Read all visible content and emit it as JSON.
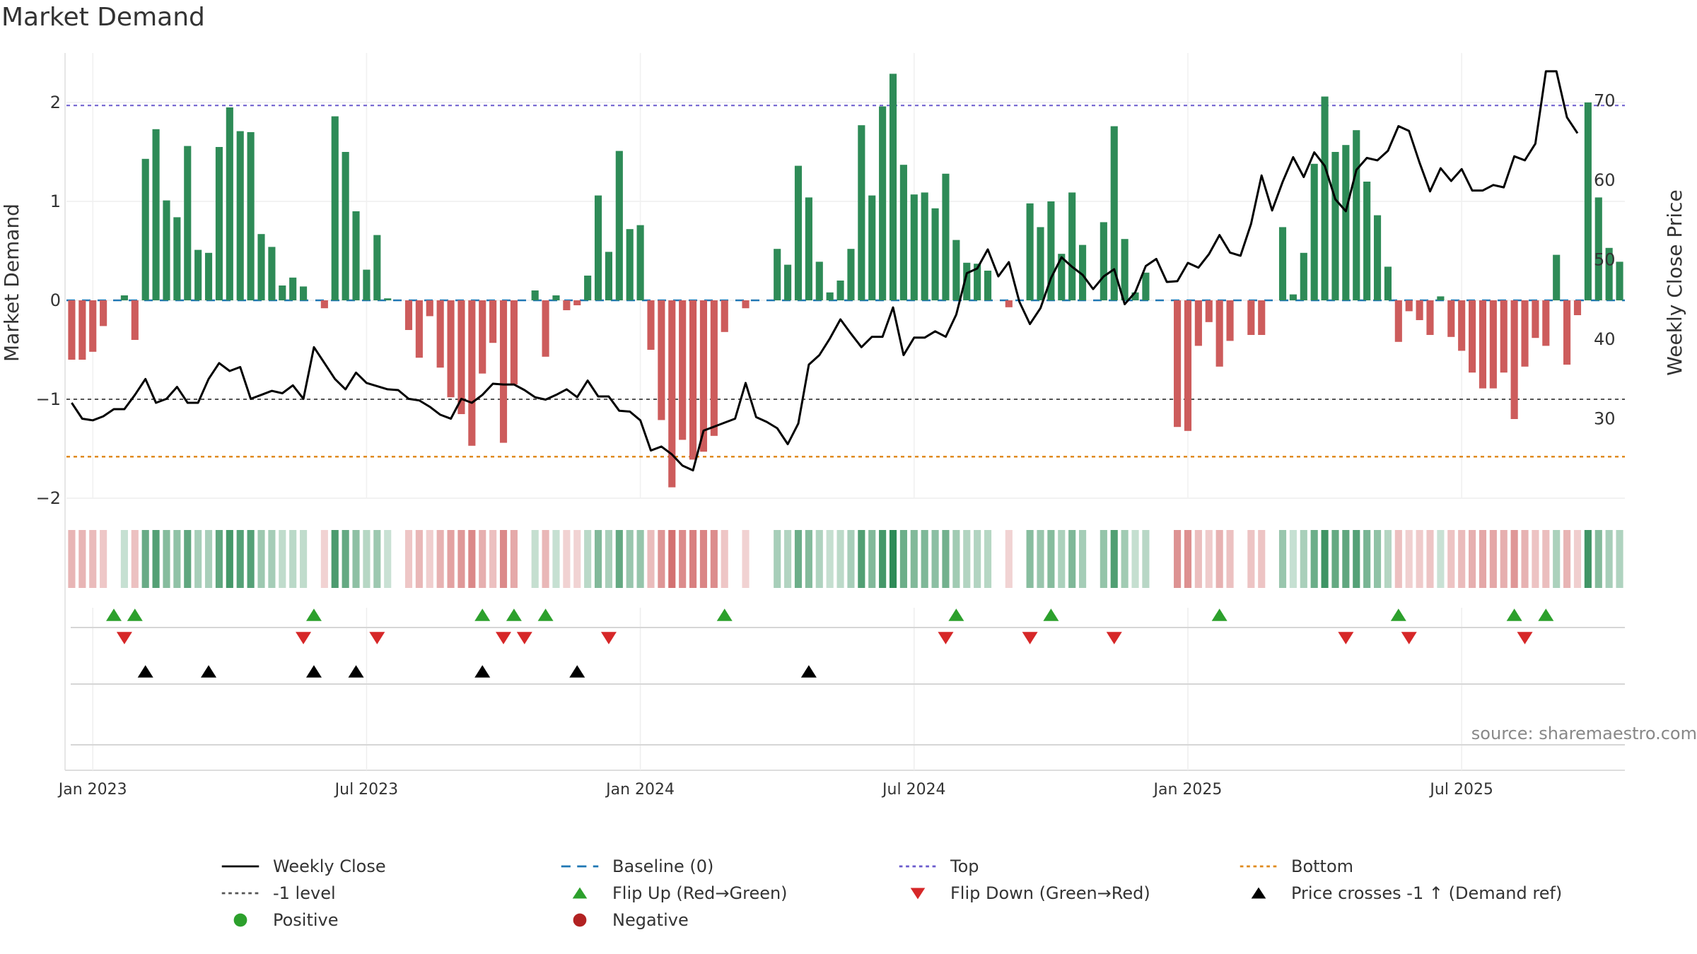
{
  "title": "Market Demand",
  "source": "source: sharemaestro.com",
  "colors": {
    "positive": "#2e8b57",
    "negative": "#cd5c5c",
    "close": "#000000",
    "baseline": "#1f77b4",
    "top": "#6a5acd",
    "bottom": "#e08a1e",
    "minus1": "#555555",
    "flip_up": "#2ca02c",
    "flip_down": "#d62728",
    "cross": "#000000"
  },
  "legend": [
    {
      "key": "close",
      "label": "Weekly Close"
    },
    {
      "key": "baseline",
      "label": "Baseline (0)"
    },
    {
      "key": "top",
      "label": "Top"
    },
    {
      "key": "bottom",
      "label": "Bottom"
    },
    {
      "key": "minus1",
      "label": "-1 level"
    },
    {
      "key": "flip_up",
      "label": "Flip Up (Red→Green)"
    },
    {
      "key": "flip_down",
      "label": "Flip Down (Green→Red)"
    },
    {
      "key": "cross",
      "label": "Price crosses -1 ↑ (Demand ref)"
    },
    {
      "key": "positive",
      "label": "Positive"
    },
    {
      "key": "negative",
      "label": "Negative"
    }
  ],
  "chart_data": {
    "type": "bar",
    "title": "Market Demand",
    "ylabel": "Market Demand",
    "y2label": "Weekly Close Price",
    "ylim": [
      -2.0,
      2.5
    ],
    "y2lim": [
      20,
      76
    ],
    "yticks": [
      -2,
      -1,
      0,
      1,
      2
    ],
    "y2ticks": [
      30,
      40,
      50,
      60,
      70
    ],
    "xticks": [
      {
        "label": "Jan 2023",
        "week": 2
      },
      {
        "label": "Jul 2023",
        "week": 28
      },
      {
        "label": "Jan 2024",
        "week": 54
      },
      {
        "label": "Jul 2024",
        "week": 80
      },
      {
        "label": "Jan 2025",
        "week": 106
      },
      {
        "label": "Jul 2025",
        "week": 132
      }
    ],
    "reference_lines": {
      "top": 1.97,
      "minus1": -1.0,
      "bottom": -1.58,
      "baseline": 0
    },
    "demand": [
      -0.6,
      -0.6,
      -0.52,
      -0.26,
      0,
      0.05,
      -0.4,
      1.43,
      1.73,
      1.01,
      0.84,
      1.56,
      0.51,
      0.48,
      1.55,
      1.95,
      1.71,
      1.7,
      0.67,
      0.54,
      0.15,
      0.23,
      0.14,
      0.0,
      -0.08,
      1.86,
      1.5,
      0.9,
      0.31,
      0.66,
      0.02,
      0.0,
      -0.3,
      -0.58,
      -0.16,
      -0.68,
      -0.98,
      -1.15,
      -1.47,
      -0.74,
      -0.43,
      -1.44,
      -0.85,
      0.0,
      0.1,
      -0.57,
      0.05,
      -0.1,
      -0.05,
      0.25,
      1.06,
      0.49,
      1.51,
      0.72,
      0.76,
      -0.5,
      -1.21,
      -1.89,
      -1.41,
      -1.61,
      -1.53,
      -1.37,
      -0.32,
      0.0,
      -0.08,
      0.0,
      0.0,
      0.52,
      0.36,
      1.36,
      1.04,
      0.39,
      0.08,
      0.2,
      0.52,
      1.77,
      1.06,
      1.96,
      2.29,
      1.37,
      1.07,
      1.09,
      0.93,
      1.28,
      0.61,
      0.38,
      0.37,
      0.3,
      0.0,
      -0.07,
      0.0,
      0.98,
      0.74,
      1.0,
      0.47,
      1.09,
      0.56,
      0.0,
      0.79,
      1.76,
      0.62,
      0.08,
      0.28,
      0.0,
      0.0,
      -1.28,
      -1.32,
      -0.46,
      -0.22,
      -0.67,
      -0.41,
      0.0,
      -0.35,
      -0.35,
      0.0,
      0.74,
      0.06,
      0.48,
      1.38,
      2.06,
      1.5,
      1.57,
      1.72,
      1.2,
      0.86,
      0.34,
      -0.42,
      -0.11,
      -0.2,
      -0.35,
      0.04,
      -0.37,
      -0.51,
      -0.73,
      -0.89,
      -0.89,
      -0.73,
      -1.2,
      -0.67,
      -0.38,
      -0.46,
      0.46,
      -0.65,
      -0.15,
      2.0,
      1.04,
      0.53,
      0.39
    ],
    "weekly_close": [
      32,
      30,
      29.8,
      30.3,
      31.2,
      31.2,
      33,
      35,
      32,
      32.5,
      34,
      32,
      32,
      35,
      37,
      36,
      36.5,
      32.5,
      33,
      33.5,
      33.2,
      34.2,
      32.5,
      39,
      37,
      35,
      33.7,
      35.8,
      34.5,
      34.1,
      33.7,
      33.6,
      32.5,
      32.3,
      31.5,
      30.5,
      30,
      32.5,
      32,
      33,
      34.4,
      34.3,
      34.3,
      33.6,
      32.7,
      32.4,
      33,
      33.7,
      32.7,
      34.8,
      32.8,
      32.8,
      31,
      30.9,
      29.8,
      26,
      26.5,
      25.5,
      24.1,
      23.5,
      28.5,
      29,
      29.5,
      30,
      34.5,
      30.2,
      29.6,
      28.8,
      26.8,
      29.4,
      36.8,
      38,
      40.1,
      42.5,
      40.7,
      39,
      40.3,
      40.3,
      44,
      38,
      40.2,
      40.2,
      41,
      40.3,
      43.1,
      48.3,
      48.9,
      51.3,
      47.9,
      49.7,
      44.7,
      41.9,
      43.9,
      47.7,
      50.3,
      49.1,
      48.1,
      46.3,
      47.9,
      48.8,
      44.4,
      45.9,
      49.2,
      50.1,
      47.2,
      47.3,
      49.6,
      49,
      50.7,
      53.1,
      50.9,
      50.5,
      54.5,
      60.6,
      56.2,
      59.8,
      62.9,
      60.4,
      63.5,
      61.8,
      57.6,
      56.1,
      61.3,
      62.8,
      62.5,
      63.7,
      66.8,
      66.2,
      62.2,
      58.6,
      61.5,
      59.9,
      61.4,
      58.7,
      58.7,
      59.4,
      59.1,
      63,
      62.5,
      64.6,
      73.7,
      73.7,
      67.9,
      65.9
    ],
    "flip_up_weeks": [
      4,
      6,
      23,
      39,
      42,
      45,
      62,
      84,
      93,
      109,
      126,
      137,
      140
    ],
    "flip_down_weeks": [
      5,
      22,
      29,
      41,
      43,
      51,
      83,
      91,
      99,
      121,
      127,
      138
    ],
    "price_cross_weeks": [
      7,
      13,
      23,
      27,
      39,
      48,
      70
    ]
  }
}
